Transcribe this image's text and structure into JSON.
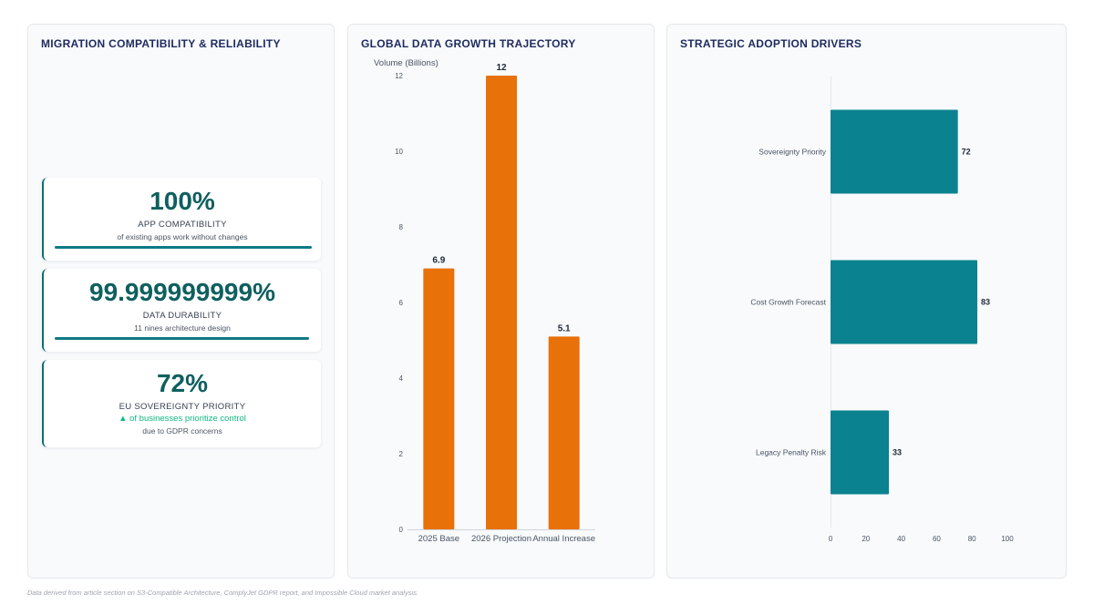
{
  "panels": {
    "left": {
      "title": "MIGRATION COMPATIBILITY & RELIABILITY"
    },
    "middle": {
      "title": "GLOBAL DATA GROWTH TRAJECTORY"
    },
    "right": {
      "title": "STRATEGIC ADOPTION DRIVERS"
    }
  },
  "kpis": [
    {
      "value": "100%",
      "label": "APP COMPATIBILITY",
      "sub": "of existing apps work without changes",
      "progress": 1.0
    },
    {
      "value": "99.999999999%",
      "label": "DATA DURABILITY",
      "sub": "11 nines architecture design",
      "progress": 0.99
    },
    {
      "value": "72%",
      "label": "EU SOVEREIGNTY PRIORITY",
      "trend": "▲ of businesses prioritize control",
      "sub": "due to GDPR concerns"
    }
  ],
  "colors": {
    "bar_orange": "#e8710a",
    "bar_teal": "#0a8290",
    "kpi_accent": "#0f6e73",
    "trend_green": "#10b981"
  },
  "chart_data": [
    {
      "type": "bar",
      "title": "GLOBAL DATA GROWTH TRAJECTORY",
      "ylabel": "Volume (Billions)",
      "xlabel": "",
      "categories": [
        "2025 Base",
        "2026 Projection",
        "Annual Increase"
      ],
      "values": [
        6.9,
        12,
        5.1
      ],
      "ylim": [
        0,
        12
      ],
      "yticks": [
        0,
        2,
        4,
        6,
        8,
        10,
        12
      ],
      "grid": false,
      "legend": "none"
    },
    {
      "type": "bar",
      "orientation": "horizontal",
      "title": "STRATEGIC ADOPTION DRIVERS",
      "xlabel": "",
      "ylabel": "",
      "categories": [
        "Sovereignty Priority",
        "Cost Growth Forecast",
        "Legacy Penalty Risk"
      ],
      "values": [
        72,
        83,
        33
      ],
      "xlim": [
        0,
        100
      ],
      "xticks": [
        0,
        20,
        40,
        60,
        80,
        100
      ],
      "grid": false,
      "legend": "none"
    }
  ],
  "footnote": "Data derived from article section on S3-Compatible Architecture, ComplyJet GDPR report, and Impossible Cloud market analysis."
}
